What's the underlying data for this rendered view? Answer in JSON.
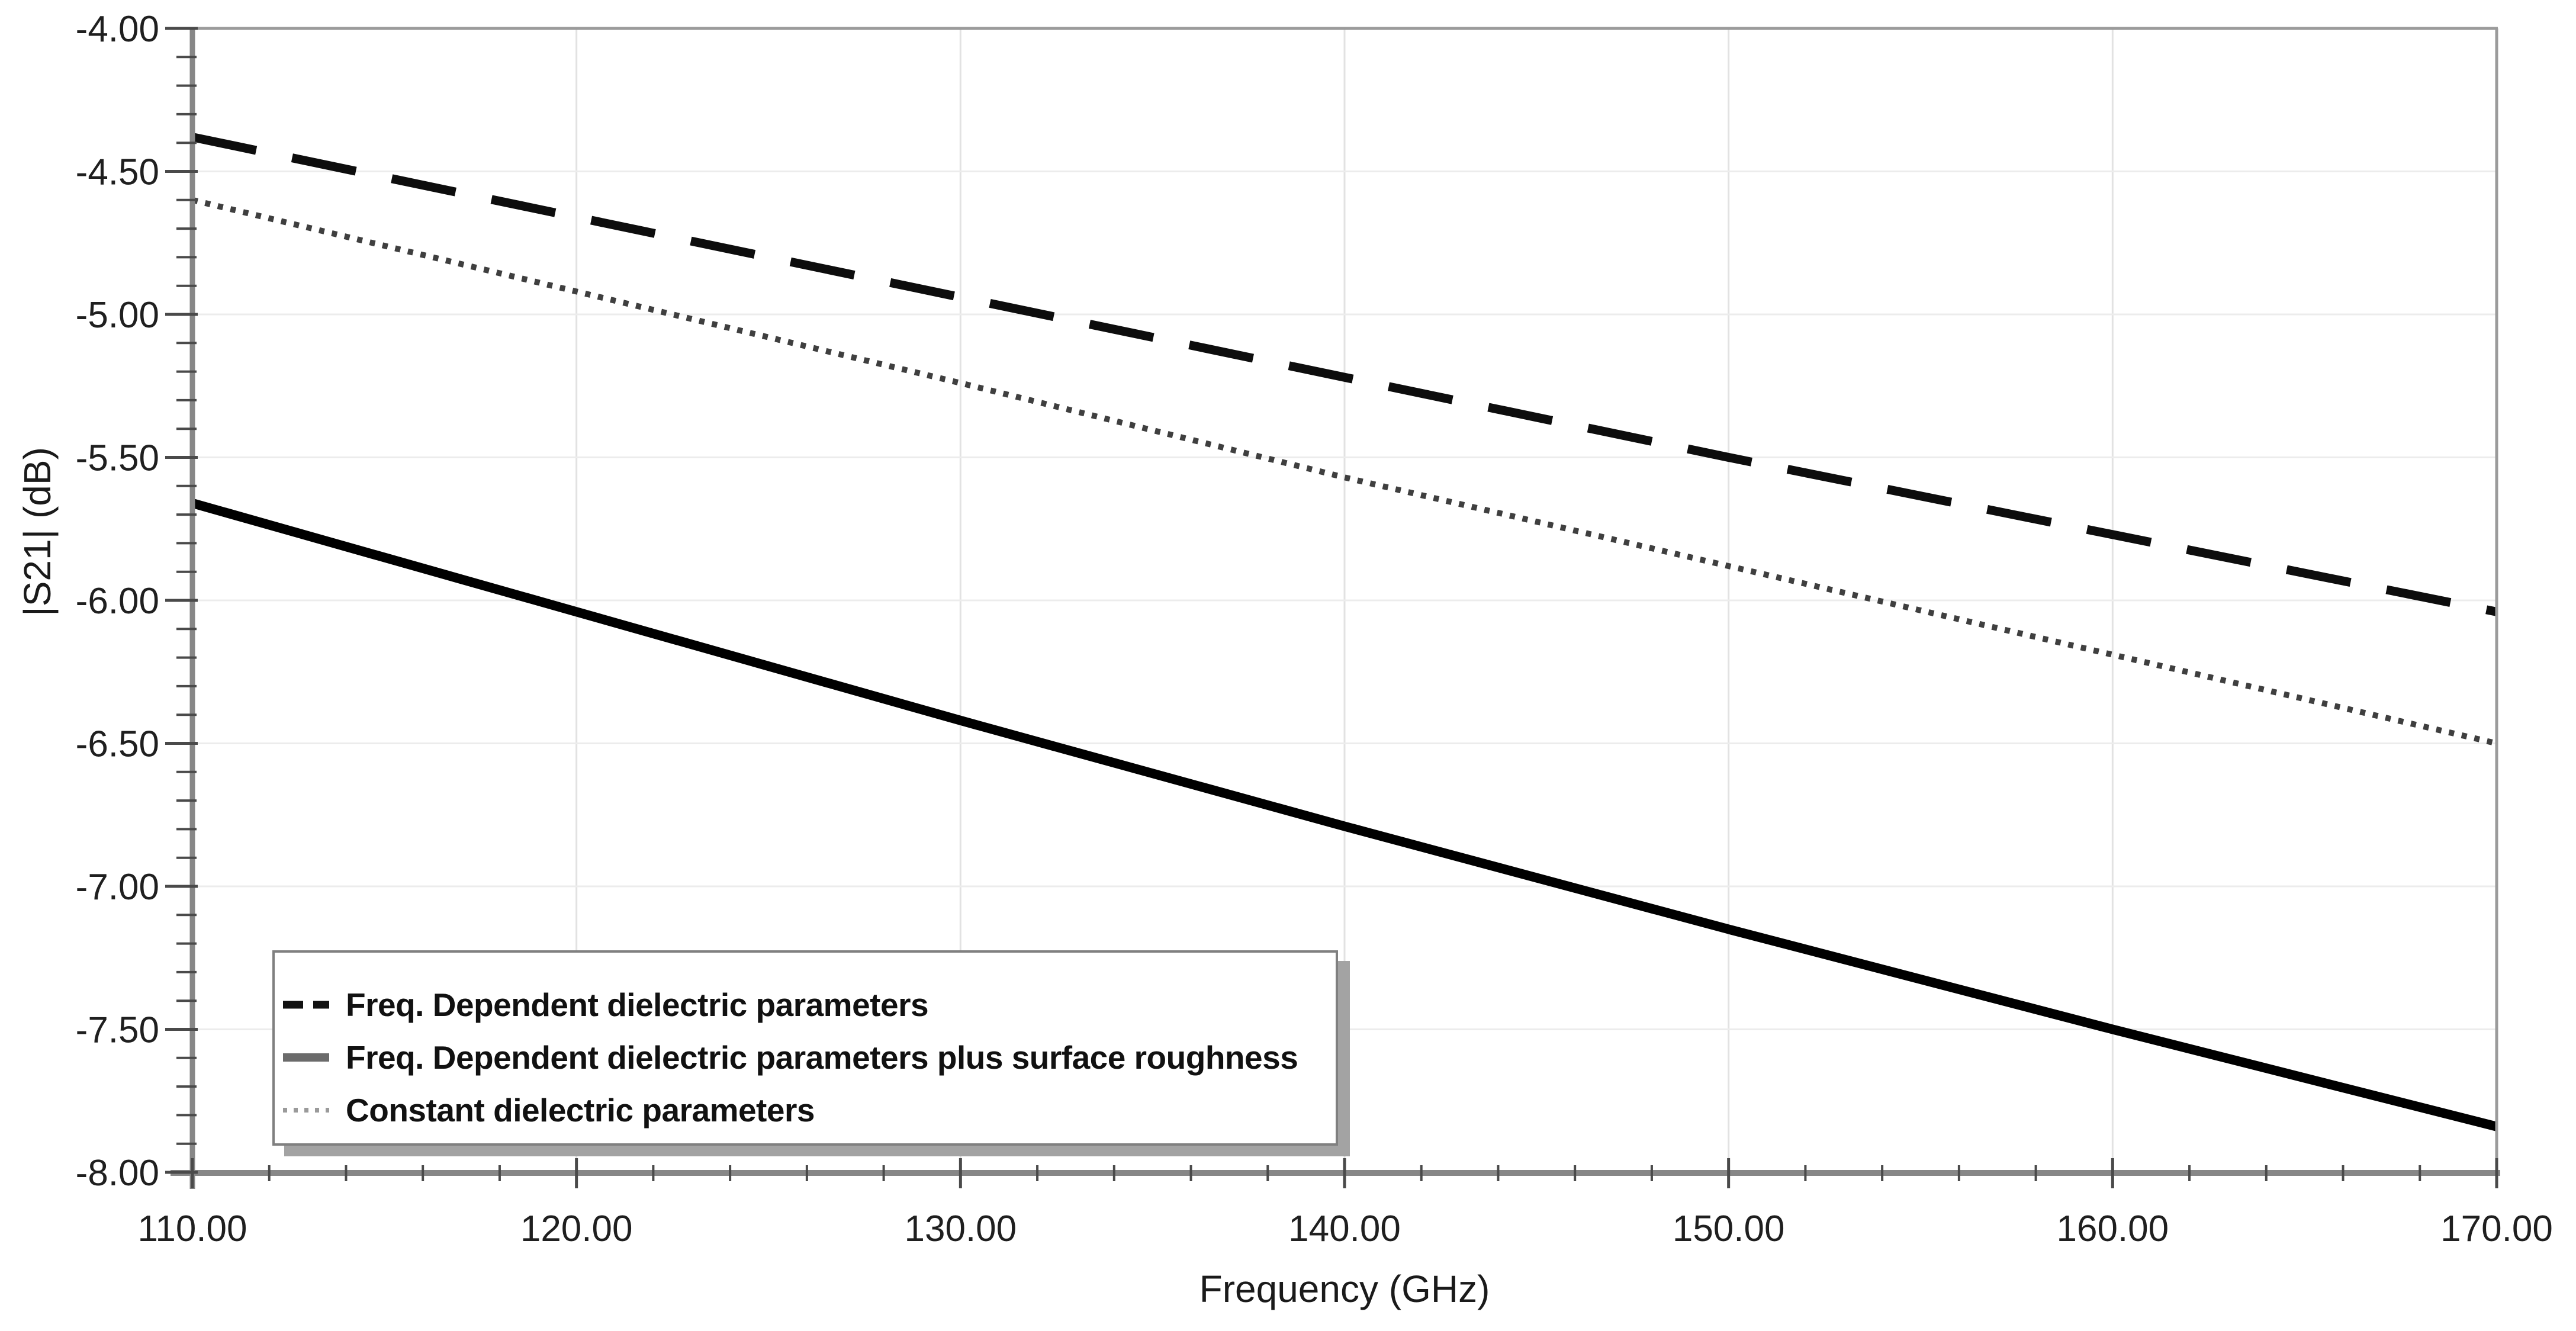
{
  "chart_data": {
    "type": "line",
    "title": "",
    "xlabel": "Frequency (GHz)",
    "ylabel": "|S21| (dB)",
    "xlim": [
      110,
      170
    ],
    "ylim": [
      -8,
      -4
    ],
    "x_major_tick_step": 10,
    "x_minor_tick_step": 2,
    "y_major_tick_step": 0.5,
    "y_minor_tick_step": 0.1,
    "grid": true,
    "legend_position": "bottom-left",
    "x": [
      110,
      120,
      130,
      140,
      150,
      160,
      170
    ],
    "series": [
      {
        "name": "Freq. Dependent dielectric parameters",
        "line_style": "dashed",
        "color": "#0d0d0d",
        "stroke_width": 15,
        "values": [
          -4.38,
          -4.66,
          -4.94,
          -5.22,
          -5.5,
          -5.77,
          -6.04
        ]
      },
      {
        "name": "Freq. Dependent dielectric parameters plus surface roughness",
        "line_style": "solid",
        "color": "#000000",
        "stroke_width": 16,
        "values": [
          -5.66,
          -6.04,
          -6.42,
          -6.79,
          -7.15,
          -7.5,
          -7.84
        ]
      },
      {
        "name": "Constant dielectric parameters",
        "line_style": "fine-dotted",
        "color": "#3f3f3f",
        "stroke_width": 10,
        "values": [
          -4.6,
          -4.92,
          -5.24,
          -5.57,
          -5.88,
          -6.19,
          -6.5
        ]
      }
    ]
  },
  "axes": {
    "x_title": "Frequency (GHz)",
    "y_title": "|S21| (dB)",
    "x_tick_labels": [
      "110.00",
      "120.00",
      "130.00",
      "140.00",
      "150.00",
      "160.00",
      "170.00"
    ],
    "y_tick_labels": [
      "-4.00",
      "-4.50",
      "-5.00",
      "-5.50",
      "-6.00",
      "-6.50",
      "-7.00",
      "-7.50",
      "-8.00"
    ]
  },
  "legend": {
    "items": [
      {
        "label": "Freq. Dependent dielectric parameters",
        "swatch_style": "dashed",
        "swatch_color": "#111111"
      },
      {
        "label": "Freq. Dependent dielectric parameters plus surface roughness",
        "swatch_style": "solid",
        "swatch_color": "#6b6b6b"
      },
      {
        "label": "Constant dielectric parameters",
        "swatch_style": "dotted",
        "swatch_color": "#9a9a9a"
      }
    ]
  },
  "colors": {
    "background": "#ffffff",
    "plot_border": "#9b9b9b",
    "axis_line": "#878787",
    "tick": "#4a4a4a",
    "grid_horizontal": "#ececec",
    "grid_vertical": "#e2e2e2",
    "tick_label": "#1f1f1f",
    "axis_title": "#1a1a1a",
    "legend_border": "#808080",
    "legend_shadow": "#a3a3a3",
    "legend_text": "#111111"
  }
}
